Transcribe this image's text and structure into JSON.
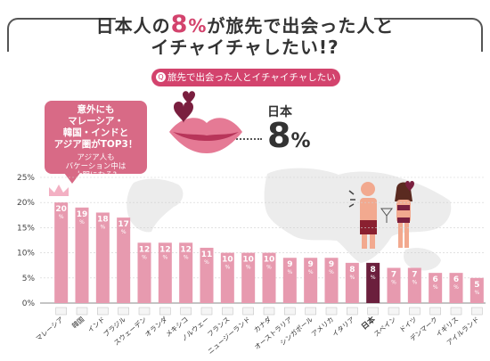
{
  "header": {
    "title_line1_pre": "日本人の",
    "title_line1_num": "8",
    "title_line1_unit": "%",
    "title_line1_post": "が旅先で出会った人と",
    "title_line2": "イチャイチャしたい!?"
  },
  "question": {
    "icon": "Q",
    "text": "旅先で出会った人とイチャイチャしたいですか?"
  },
  "callout": {
    "line1": "意外にも",
    "line2": "マレーシア・",
    "line3": "韓国・インドと",
    "line4": "アジア圏がTOP3！",
    "line5": "アジア人も",
    "line6": "バケーション中は",
    "line7": "大胆になる?"
  },
  "highlight": {
    "label": "日本",
    "value": "8",
    "unit": "%"
  },
  "colors": {
    "accent": "#d3436d",
    "bar": "#e79aaf",
    "bar_highlight": "#6b1f3d",
    "map": "#e8e8e8",
    "crown": "#f3b0c3"
  },
  "icons": [
    "lips-icon",
    "heart-icon",
    "couple-icon",
    "crown-icon",
    "question-icon",
    "world-map-icon"
  ],
  "chart_data": {
    "type": "bar",
    "categories": [
      "マレーシア",
      "韓国",
      "インド",
      "ブラジル",
      "スウェーデン",
      "オランダ",
      "メキシコ",
      "ノルウェー",
      "フランス",
      "ニュージーランド",
      "カナダ",
      "オーストラリア",
      "シンガポール",
      "アメリカ",
      "イタリア",
      "日本",
      "スペイン",
      "ドイツ",
      "デンマーク",
      "イギリス",
      "アイルランド"
    ],
    "values": [
      20,
      19,
      18,
      17,
      12,
      12,
      12,
      11,
      10,
      10,
      10,
      9,
      9,
      9,
      8,
      8,
      7,
      7,
      6,
      6,
      5
    ],
    "value_unit": "%",
    "highlight_category": "日本",
    "y_ticks": [
      "0%",
      "5%",
      "10%",
      "15%",
      "20%",
      "25%"
    ],
    "ylim": [
      0,
      25
    ],
    "grid": true
  }
}
